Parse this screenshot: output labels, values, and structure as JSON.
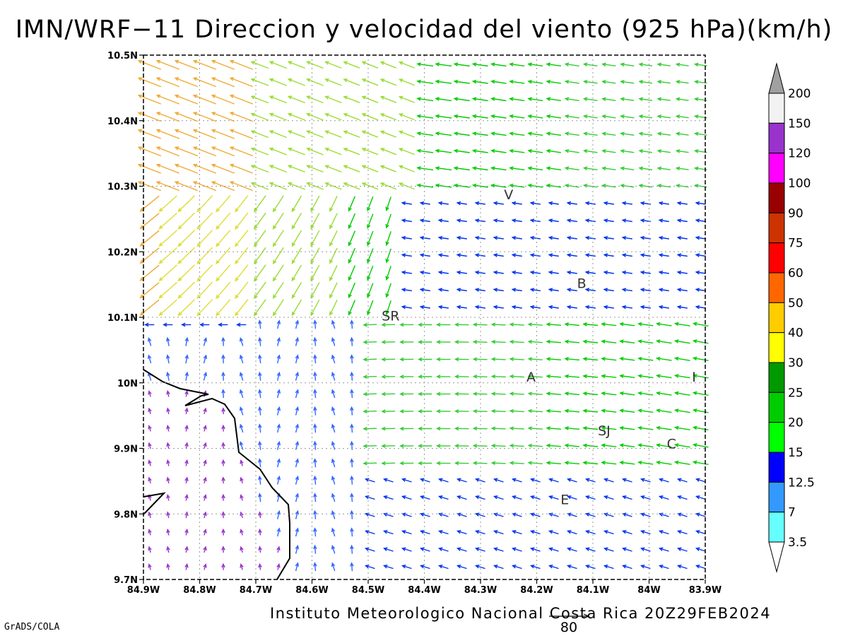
{
  "title": "IMN/WRF−11 Direccion y velocidad del viento (925 hPa)(km/h)",
  "footer": {
    "credit": "Instituto Meteorologico Nacional Costa Rica  20Z29FEB2024",
    "software": "GrADS/COLA",
    "reference_vector_label": "80"
  },
  "map": {
    "lon_range": [
      -84.9,
      -83.9
    ],
    "lat_range": [
      9.7,
      10.5
    ],
    "x_tick_labels": [
      "84.9W",
      "84.8W",
      "84.7W",
      "84.6W",
      "84.5W",
      "84.4W",
      "84.3W",
      "84.2W",
      "84.1W",
      "84W",
      "83.9W"
    ],
    "y_tick_labels": [
      "9.7N",
      "9.8N",
      "9.9N",
      "10N",
      "10.1N",
      "10.2N",
      "10.3N",
      "10.4N",
      "10.5N"
    ],
    "cities": [
      {
        "label": "V",
        "lon": -84.25,
        "lat": 10.28
      },
      {
        "label": "SR",
        "lon": -84.46,
        "lat": 10.095
      },
      {
        "label": "B",
        "lon": -84.12,
        "lat": 10.145
      },
      {
        "label": "A",
        "lon": -84.21,
        "lat": 10.002
      },
      {
        "label": "I",
        "lon": -83.92,
        "lat": 10.002
      },
      {
        "label": "SJ",
        "lon": -84.08,
        "lat": 9.92
      },
      {
        "label": "C",
        "lon": -83.96,
        "lat": 9.9
      },
      {
        "label": "E",
        "lon": -84.15,
        "lat": 9.815
      }
    ]
  },
  "legend": {
    "labels": [
      "200",
      "150",
      "120",
      "100",
      "90",
      "75",
      "60",
      "50",
      "40",
      "30",
      "25",
      "20",
      "15",
      "12.5",
      "7",
      "3.5"
    ],
    "colors": [
      "#f2f2f2",
      "#9933cc",
      "#ff00ff",
      "#990000",
      "#cc3300",
      "#ff0000",
      "#ff6600",
      "#ffcc00",
      "#ffff00",
      "#009900",
      "#00cc00",
      "#00ff00",
      "#0000ff",
      "#3399ff",
      "#66ffff"
    ],
    "top_arrow_color": "#a0a0a0",
    "bottom_arrow_color": "#ffffff"
  }
}
